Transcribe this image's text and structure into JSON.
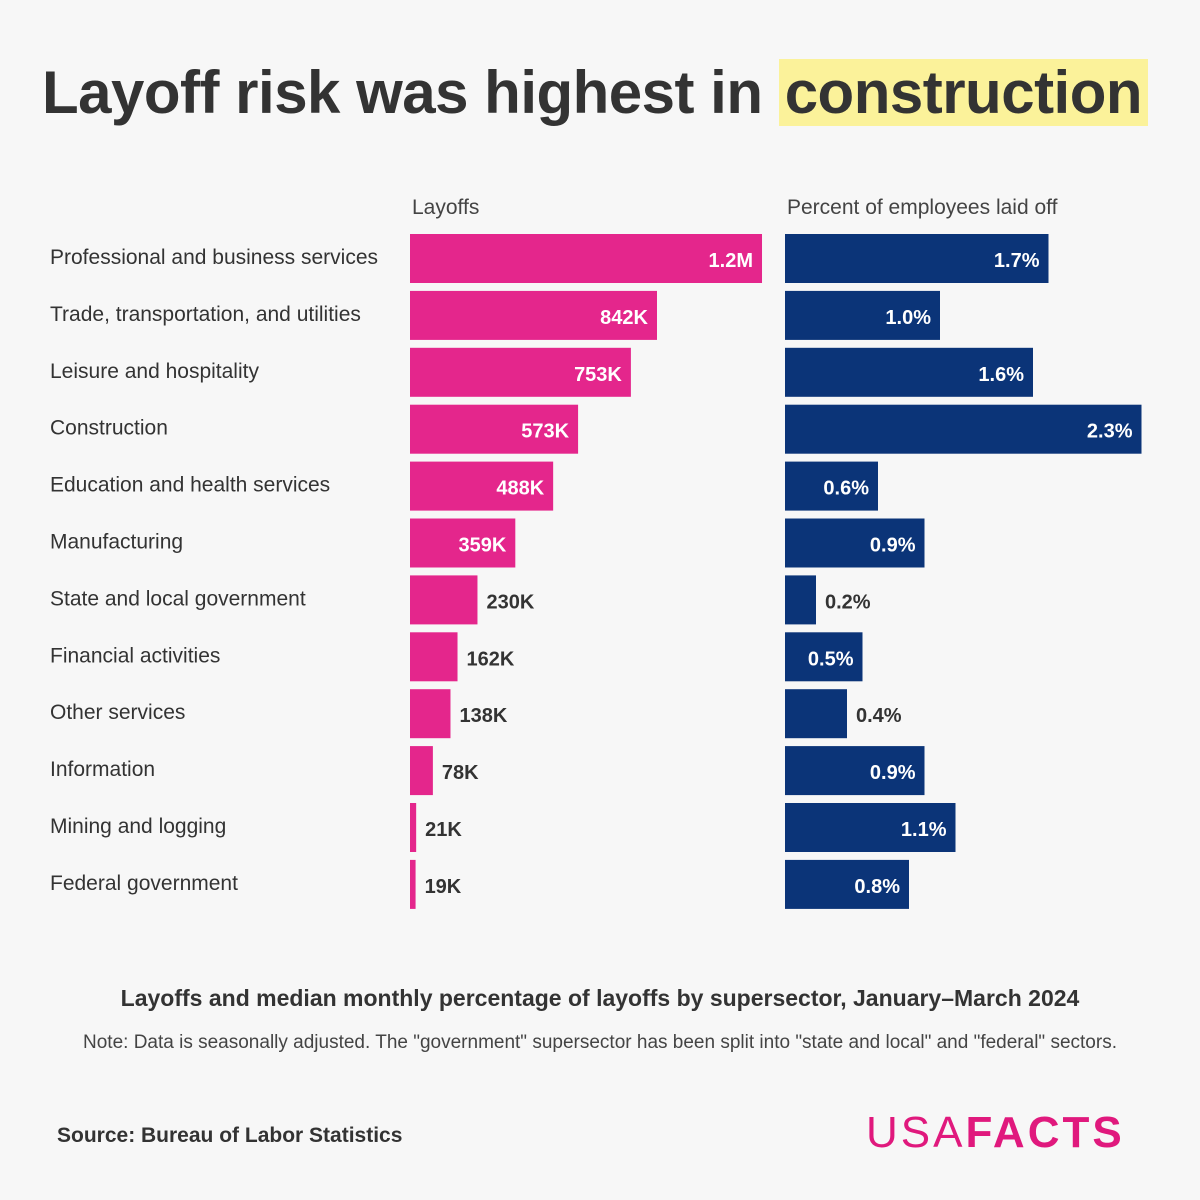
{
  "title": {
    "prefix": "Layoff risk was highest in ",
    "highlight": "construction"
  },
  "chart_data": [
    {
      "type": "bar",
      "orientation": "horizontal",
      "title": "Layoffs",
      "color": "#e4268c",
      "categories": [
        "Professional and business services",
        "Trade, transportation, and utilities",
        "Leisure and hospitality",
        "Construction",
        "Education and health services",
        "Manufacturing",
        "State and local government",
        "Financial activities",
        "Other services",
        "Information",
        "Mining and logging",
        "Federal government"
      ],
      "values": [
        1200000,
        842000,
        753000,
        573000,
        488000,
        359000,
        230000,
        162000,
        138000,
        78000,
        21000,
        19000
      ],
      "data_labels": [
        "1.2M",
        "842K",
        "753K",
        "573K",
        "488K",
        "359K",
        "230K",
        "162K",
        "138K",
        "78K",
        "21K",
        "19K"
      ]
    },
    {
      "type": "bar",
      "orientation": "horizontal",
      "title": "Percent of employees laid off",
      "color": "#0b3478",
      "categories": [
        "Professional and business services",
        "Trade, transportation, and utilities",
        "Leisure and hospitality",
        "Construction",
        "Education and health services",
        "Manufacturing",
        "State and local government",
        "Financial activities",
        "Other services",
        "Information",
        "Mining and logging",
        "Federal government"
      ],
      "values": [
        1.7,
        1.0,
        1.6,
        2.3,
        0.6,
        0.9,
        0.2,
        0.5,
        0.4,
        0.9,
        1.1,
        0.8
      ],
      "data_labels": [
        "1.7%",
        "1.0%",
        "1.6%",
        "2.3%",
        "0.6%",
        "0.9%",
        "0.2%",
        "0.5%",
        "0.4%",
        "0.9%",
        "1.1%",
        "0.8%"
      ]
    }
  ],
  "subtitle": "Layoffs and median monthly percentage of layoffs by supersector, January–March 2024",
  "note": "Note: Data is seasonally adjusted. The \"government\" supersector has been split into \"state and local\" and \"federal\" sectors.",
  "source": "Source: Bureau of Labor Statistics",
  "logo": {
    "usa": "USA",
    "facts": "FACTS",
    "color": "#e0197d"
  }
}
